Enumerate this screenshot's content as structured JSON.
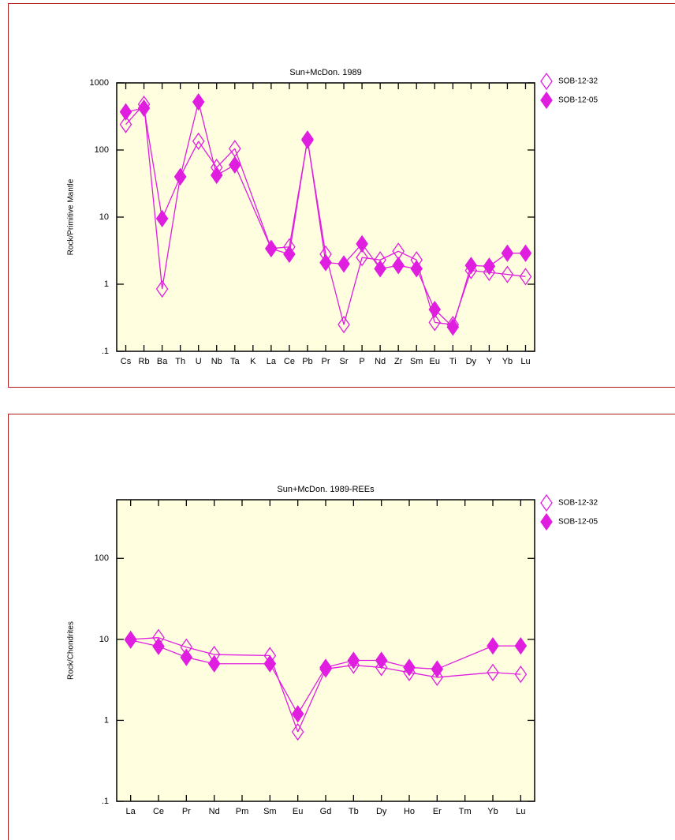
{
  "chart_data": [
    {
      "type": "line",
      "title": "Sun+McDon. 1989",
      "y_label": "Rock/Primitive Mantle",
      "log_scale": true,
      "background": "#ffffe0",
      "categories": [
        "Cs",
        "Rb",
        "Ba",
        "Th",
        "U",
        "Nb",
        "Ta",
        "K",
        "La",
        "Ce",
        "Pb",
        "Pr",
        "Sr",
        "P",
        "Nd",
        "Zr",
        "Sm",
        "Eu",
        "Ti",
        "Dy",
        "Y",
        "Yb",
        "Lu"
      ],
      "ylim": [
        0.1,
        1000
      ],
      "yticks": [
        {
          "value": 0.1,
          "label": ".1"
        },
        1,
        10,
        100,
        1000
      ],
      "series": [
        {
          "name": "SOB-12-32",
          "color": "#e01ee0",
          "filled": false,
          "values": [
            240,
            480,
            0.85,
            40,
            135,
            55,
            105,
            null,
            3.4,
            3.6,
            140,
            2.8,
            0.25,
            2.5,
            2.3,
            3.1,
            2.3,
            0.27,
            0.25,
            1.6,
            1.5,
            1.4,
            1.3
          ]
        },
        {
          "name": "SOB-12-05",
          "color": "#e01ee0",
          "filled": true,
          "values": [
            370,
            420,
            9.5,
            40,
            520,
            42,
            60,
            null,
            3.4,
            2.8,
            145,
            2.1,
            2.0,
            4.0,
            1.7,
            1.9,
            1.7,
            0.42,
            0.23,
            1.9,
            1.85,
            2.9,
            2.9
          ]
        }
      ]
    },
    {
      "type": "line",
      "title": "Sun+McDon. 1989-REEs",
      "y_label": "Rock/Chondrites",
      "log_scale": true,
      "background": "#ffffe0",
      "categories": [
        "La",
        "Ce",
        "Pr",
        "Nd",
        "Pm",
        "Sm",
        "Eu",
        "Gd",
        "Tb",
        "Dy",
        "Ho",
        "Er",
        "Tm",
        "Yb",
        "Lu"
      ],
      "ylim": [
        0.1,
        530
      ],
      "yticks": [
        {
          "value": 0.1,
          "label": ".1"
        },
        1,
        10,
        100
      ],
      "series": [
        {
          "name": "SOB-12-32",
          "color": "#e01ee0",
          "filled": false,
          "values": [
            10,
            10.5,
            8,
            6.5,
            null,
            6.3,
            0.72,
            4.3,
            4.8,
            4.5,
            3.9,
            3.4,
            null,
            3.9,
            3.7
          ]
        },
        {
          "name": "SOB-12-05",
          "color": "#e01ee0",
          "filled": true,
          "values": [
            9.8,
            8.2,
            6,
            5,
            null,
            5,
            1.2,
            4.5,
            5.5,
            5.5,
            4.5,
            4.3,
            null,
            8.3,
            8.3
          ]
        }
      ]
    }
  ]
}
